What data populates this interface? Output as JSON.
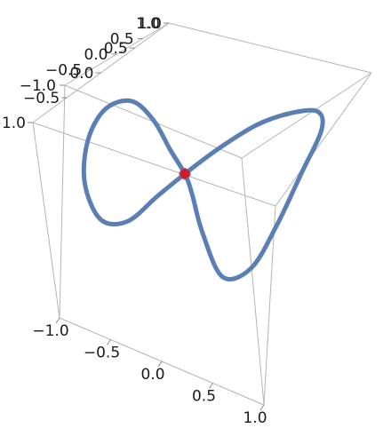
{
  "chart_data": {
    "type": "line",
    "title": "",
    "xlabel": "",
    "ylabel": "",
    "zlabel": "",
    "x_ticks": [
      "-1.0",
      "-0.5",
      "0.0",
      "0.5",
      "1.0"
    ],
    "y_ticks": [
      "-1.0",
      "-0.5",
      "0.0",
      "0.5",
      "1.0"
    ],
    "z_ticks": [
      "-1.0",
      "-0.5",
      "0.0",
      "0.5",
      "1.0"
    ],
    "xlim": [
      -1,
      1
    ],
    "ylim": [
      -1,
      1
    ],
    "zlim": [
      -1,
      1
    ],
    "grid": false,
    "series": [
      {
        "color": "#5b7fb5",
        "values": [
          [
            0.0,
            0.0,
            0.0
          ],
          [
            0.2,
            0.35,
            0.12
          ],
          [
            0.4,
            0.7,
            0.22
          ],
          [
            0.6,
            0.9,
            0.3
          ],
          [
            0.8,
            0.92,
            0.4
          ],
          [
            0.94,
            0.7,
            0.38
          ],
          [
            0.98,
            0.3,
            0.18
          ],
          [
            0.94,
            -0.1,
            -0.1
          ],
          [
            0.8,
            -0.4,
            -0.35
          ],
          [
            0.55,
            -0.5,
            -0.45
          ],
          [
            0.3,
            -0.3,
            -0.28
          ],
          [
            0.12,
            -0.1,
            -0.1
          ],
          [
            0.0,
            0.0,
            0.0
          ],
          [
            -0.2,
            0.18,
            0.05
          ],
          [
            -0.45,
            0.45,
            0.1
          ],
          [
            -0.7,
            0.6,
            0.12
          ],
          [
            -0.88,
            0.45,
            0.05
          ],
          [
            -0.92,
            0.15,
            -0.12
          ],
          [
            -0.85,
            -0.2,
            -0.3
          ],
          [
            -0.65,
            -0.45,
            -0.4
          ],
          [
            -0.4,
            -0.45,
            -0.32
          ],
          [
            -0.18,
            -0.22,
            -0.15
          ],
          [
            0.0,
            0.0,
            0.0
          ]
        ]
      }
    ],
    "highlight_point": {
      "value": [
        0,
        0,
        0
      ],
      "color": "#d11a2a"
    }
  }
}
